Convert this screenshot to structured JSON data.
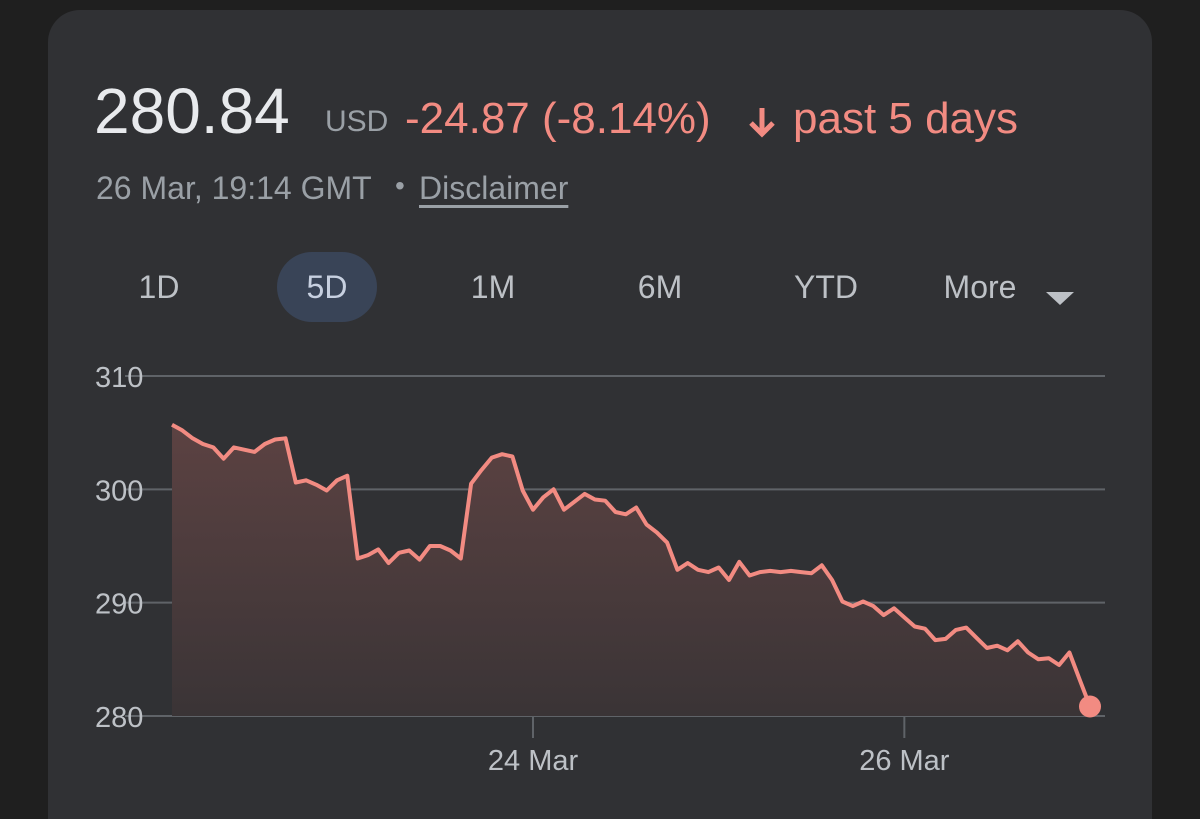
{
  "header": {
    "price": "280.84",
    "currency": "USD",
    "change": "-24.87 (-8.14%)",
    "period": "past 5 days",
    "timestamp": "26 Mar, 19:14 GMT",
    "separator": "•",
    "disclaimer": "Disclaimer"
  },
  "tabs": {
    "items": [
      "1D",
      "5D",
      "1M",
      "6M",
      "YTD",
      "More"
    ],
    "selected": "5D"
  },
  "chart_data": {
    "type": "area-line",
    "color": "#f28b82",
    "categories": [
      null,
      null,
      null,
      null,
      null,
      null,
      null,
      null,
      null,
      null,
      null,
      null,
      null,
      null,
      null,
      null,
      null,
      null,
      null,
      null,
      null,
      null,
      null,
      null,
      null,
      null,
      null,
      null,
      null,
      null,
      null,
      null,
      null,
      null,
      null,
      "24 Mar",
      null,
      null,
      null,
      null,
      null,
      null,
      null,
      null,
      null,
      null,
      null,
      null,
      null,
      null,
      null,
      null,
      null,
      null,
      null,
      null,
      null,
      null,
      null,
      null,
      null,
      null,
      null,
      null,
      null,
      null,
      null,
      null,
      null,
      null,
      null,
      "26 Mar",
      null,
      null,
      null,
      null,
      null,
      null,
      null,
      null,
      null,
      null,
      null,
      null,
      null,
      null,
      null,
      null,
      null,
      null
    ],
    "values": [
      305.7,
      305.2,
      304.5,
      304.0,
      303.7,
      302.7,
      303.7,
      303.5,
      303.3,
      304.0,
      304.4,
      304.5,
      300.6,
      300.8,
      300.4,
      299.9,
      300.8,
      301.2,
      293.9,
      294.2,
      294.7,
      293.5,
      294.4,
      294.6,
      293.8,
      295.0,
      295.0,
      294.6,
      293.9,
      300.5,
      301.7,
      302.8,
      303.1,
      302.9,
      299.9,
      298.2,
      299.3,
      300.0,
      298.2,
      298.9,
      299.6,
      299.1,
      299.0,
      298.0,
      297.8,
      298.4,
      296.9,
      296.2,
      295.3,
      292.9,
      293.5,
      292.9,
      292.7,
      293.1,
      292.0,
      293.6,
      292.4,
      292.7,
      292.8,
      292.7,
      292.8,
      292.7,
      292.6,
      293.3,
      292.0,
      290.1,
      289.7,
      290.1,
      289.7,
      288.9,
      289.5,
      288.7,
      287.9,
      287.7,
      286.7,
      286.8,
      287.6,
      287.8,
      286.9,
      286.0,
      286.2,
      285.8,
      286.6,
      285.6,
      285.0,
      285.1,
      284.5,
      285.6,
      283.2,
      280.84
    ],
    "ylim": [
      280,
      310
    ],
    "yticks": [
      280,
      290,
      300,
      310
    ],
    "grid": true
  }
}
